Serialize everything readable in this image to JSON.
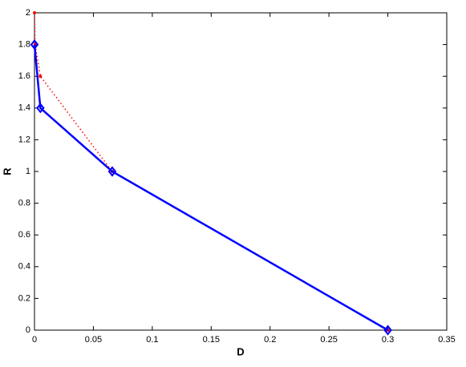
{
  "chart_data": {
    "type": "line",
    "xlabel": "D",
    "ylabel": "R",
    "xlim": [
      0,
      0.35
    ],
    "xticks": [
      0,
      0.05,
      0.1,
      0.15,
      0.2,
      0.25,
      0.3,
      0.35
    ],
    "ylim": [
      0,
      2
    ],
    "yticks": [
      0,
      0.2,
      0.4,
      0.6,
      0.8,
      1,
      1.2,
      1.4,
      1.6,
      1.8,
      2
    ],
    "grid": false,
    "series": [
      {
        "color": "#ff0000",
        "line_style": "dotted",
        "marker": "point",
        "x": [
          0,
          0.0005,
          0.005,
          0.066,
          0.3
        ],
        "values": [
          2,
          1.8,
          1.6,
          1.0,
          0
        ]
      },
      {
        "color": "#0000ff",
        "line_style": "solid",
        "marker": "diamond",
        "x": [
          0,
          0.005,
          0.066,
          0.3
        ],
        "values": [
          1.8,
          1.4,
          1.0,
          0
        ]
      }
    ]
  }
}
